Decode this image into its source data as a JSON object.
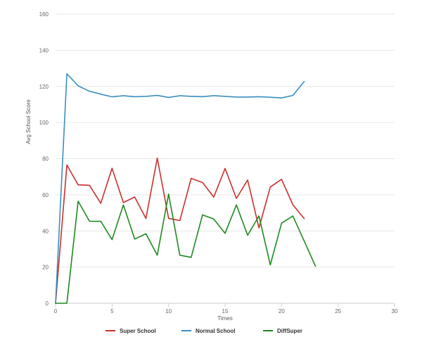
{
  "chart_data": {
    "type": "line",
    "xlabel": "Times",
    "ylabel": "Avg School Score",
    "xlim": [
      0,
      30
    ],
    "ylim": [
      0,
      160
    ],
    "xticks": [
      0,
      5,
      10,
      15,
      20,
      25,
      30
    ],
    "yticks": [
      0,
      20,
      40,
      60,
      80,
      100,
      120,
      140,
      160
    ],
    "grid": "horizontal",
    "legend_position": "bottom-center",
    "series": [
      {
        "name": "Super School",
        "color": "#c9302c",
        "x": [
          0,
          1,
          2,
          3,
          4,
          5,
          6,
          7,
          8,
          9,
          10,
          11,
          12,
          13,
          14,
          15,
          16,
          17,
          18,
          19,
          20,
          21,
          22
        ],
        "y": [
          0,
          76.5,
          65.5,
          65.3,
          55.3,
          74.7,
          55.7,
          58.8,
          46.9,
          80.3,
          47,
          45.8,
          69.1,
          66.8,
          58.8,
          74.6,
          58,
          68.2,
          41.7,
          64.3,
          68.6,
          54.5,
          46.8
        ]
      },
      {
        "name": "Normal School",
        "color": "#3a8fc0",
        "x": [
          0,
          1,
          2,
          3,
          4,
          5,
          6,
          7,
          8,
          9,
          10,
          11,
          12,
          13,
          14,
          15,
          16,
          17,
          18,
          19,
          20,
          21,
          22
        ],
        "y": [
          0,
          127,
          120.3,
          117.3,
          115.7,
          114.2,
          114.8,
          114.3,
          114.5,
          115,
          113.9,
          114.8,
          114.5,
          114.3,
          114.9,
          114.5,
          114.1,
          114.1,
          114.3,
          114,
          113.6,
          115,
          122.7
        ]
      },
      {
        "name": "DiffSuper",
        "color": "#1e8a1e",
        "x": [
          0,
          1,
          2,
          3,
          4,
          5,
          6,
          7,
          8,
          9,
          10,
          11,
          12,
          13,
          14,
          15,
          16,
          17,
          18,
          19,
          20,
          21,
          22,
          23
        ],
        "y": [
          0,
          0,
          56.5,
          45.4,
          45.3,
          35.2,
          54.4,
          35.5,
          38.5,
          26.6,
          60.4,
          26.6,
          25.4,
          48.9,
          46.6,
          38.7,
          54.4,
          37.6,
          48.3,
          21.2,
          44.3,
          48.3,
          34.4,
          20.5
        ]
      }
    ]
  }
}
